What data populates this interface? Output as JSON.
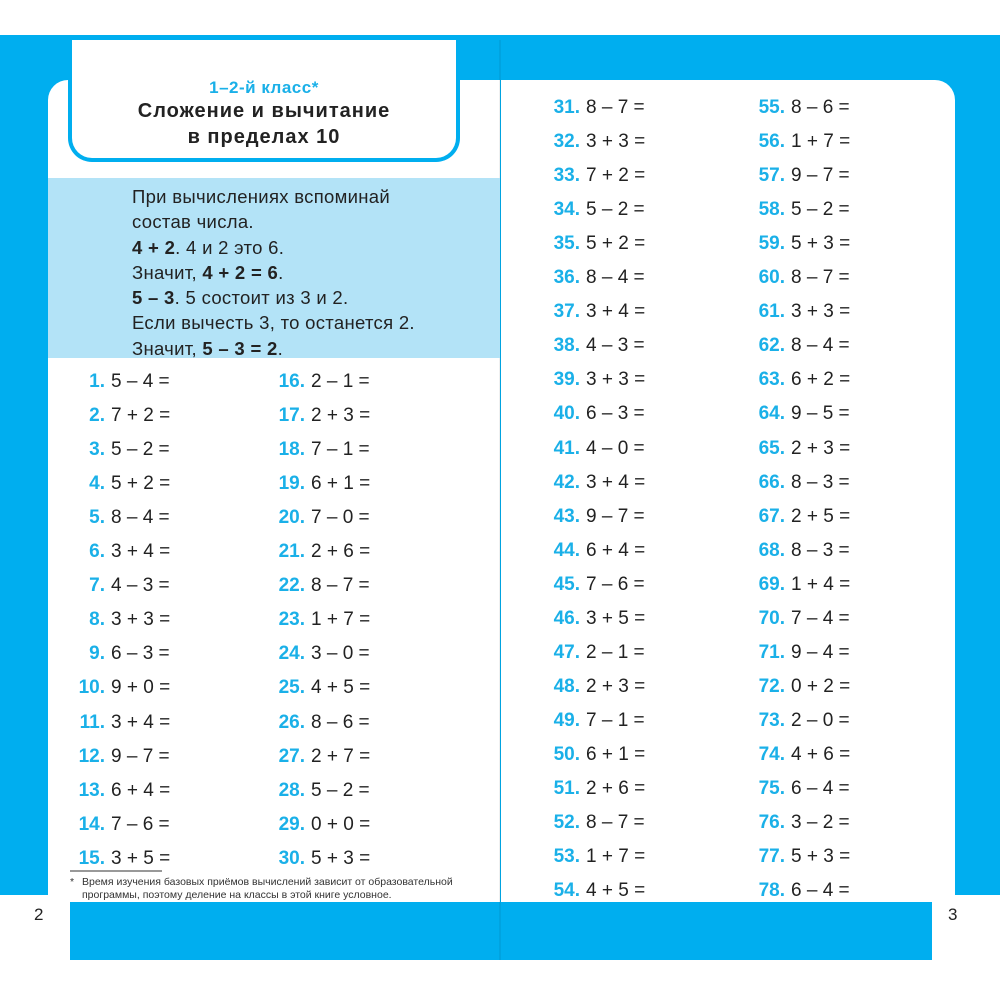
{
  "header": {
    "grade": "1–2-й класс*",
    "title_line1": "Сложение и вычитание",
    "title_line2": "в пределах 10"
  },
  "info": {
    "line1": "При вычислениях вспоминай",
    "line2": "состав числа.",
    "l3_bold": "4 + 2",
    "l3_rest": ". 4 и 2 это 6.",
    "l4_pre": "Значит, ",
    "l4_bold": "4 + 2 = 6",
    "l4_post": ".",
    "l5_bold": "5 – 3",
    "l5_rest": ". 5 состоит из 3 и 2.",
    "line6": "Если вычесть 3, то останется 2.",
    "l7_pre": "Значит, ",
    "l7_bold": "5 – 3 = 2",
    "l7_post": "."
  },
  "exercises": [
    [
      "1.",
      "5 – 4 ="
    ],
    [
      "2.",
      "7 + 2 ="
    ],
    [
      "3.",
      "5 – 2 ="
    ],
    [
      "4.",
      "5 + 2 ="
    ],
    [
      "5.",
      "8 – 4 ="
    ],
    [
      "6.",
      "3 + 4 ="
    ],
    [
      "7.",
      "4 – 3 ="
    ],
    [
      "8.",
      "3 + 3 ="
    ],
    [
      "9.",
      "6 – 3 ="
    ],
    [
      "10.",
      "9 + 0 ="
    ],
    [
      "11.",
      "3 + 4 ="
    ],
    [
      "12.",
      "9 – 7 ="
    ],
    [
      "13.",
      "6 + 4 ="
    ],
    [
      "14.",
      "7 – 6 ="
    ],
    [
      "15.",
      "3 + 5 ="
    ],
    [
      "16.",
      "2 – 1 ="
    ],
    [
      "17.",
      "2 + 3 ="
    ],
    [
      "18.",
      "7 – 1 ="
    ],
    [
      "19.",
      "6 + 1 ="
    ],
    [
      "20.",
      "7 – 0 ="
    ],
    [
      "21.",
      "2 + 6 ="
    ],
    [
      "22.",
      "8 – 7 ="
    ],
    [
      "23.",
      "1 + 7 ="
    ],
    [
      "24.",
      "3 – 0 ="
    ],
    [
      "25.",
      "4 + 5 ="
    ],
    [
      "26.",
      "8 – 6 ="
    ],
    [
      "27.",
      "2 + 7 ="
    ],
    [
      "28.",
      "5 – 2 ="
    ],
    [
      "29.",
      "0 + 0 ="
    ],
    [
      "30.",
      "5 + 3 ="
    ],
    [
      "31.",
      "8 – 7 ="
    ],
    [
      "32.",
      "3 + 3 ="
    ],
    [
      "33.",
      "7 + 2 ="
    ],
    [
      "34.",
      "5 – 2 ="
    ],
    [
      "35.",
      "5 + 2 ="
    ],
    [
      "36.",
      "8 – 4 ="
    ],
    [
      "37.",
      "3 + 4 ="
    ],
    [
      "38.",
      "4 – 3 ="
    ],
    [
      "39.",
      "3 + 3 ="
    ],
    [
      "40.",
      "6 – 3 ="
    ],
    [
      "41.",
      "4 – 0 ="
    ],
    [
      "42.",
      "3 + 4 ="
    ],
    [
      "43.",
      "9 – 7 ="
    ],
    [
      "44.",
      "6 + 4 ="
    ],
    [
      "45.",
      "7 – 6 ="
    ],
    [
      "46.",
      "3 + 5 ="
    ],
    [
      "47.",
      "2 – 1 ="
    ],
    [
      "48.",
      "2 + 3 ="
    ],
    [
      "49.",
      "7 – 1 ="
    ],
    [
      "50.",
      "6 + 1 ="
    ],
    [
      "51.",
      "2 + 6 ="
    ],
    [
      "52.",
      "8 – 7 ="
    ],
    [
      "53.",
      "1 + 7 ="
    ],
    [
      "54.",
      "4 + 5 ="
    ],
    [
      "55.",
      "8 – 6 ="
    ],
    [
      "56.",
      "1 + 7 ="
    ],
    [
      "57.",
      "9 – 7 ="
    ],
    [
      "58.",
      "5 – 2 ="
    ],
    [
      "59.",
      "5 + 3 ="
    ],
    [
      "60.",
      "8 – 7 ="
    ],
    [
      "61.",
      "3 + 3 ="
    ],
    [
      "62.",
      "8 – 4 ="
    ],
    [
      "63.",
      "6 + 2 ="
    ],
    [
      "64.",
      "9 – 5 ="
    ],
    [
      "65.",
      "2 + 3 ="
    ],
    [
      "66.",
      "8 – 3 ="
    ],
    [
      "67.",
      "2 + 5 ="
    ],
    [
      "68.",
      "8 – 3 ="
    ],
    [
      "69.",
      "1 + 4 ="
    ],
    [
      "70.",
      "7 – 4 ="
    ],
    [
      "71.",
      "9 – 4 ="
    ],
    [
      "72.",
      "0 + 2 ="
    ],
    [
      "73.",
      "2 – 0 ="
    ],
    [
      "74.",
      "4 + 6 ="
    ],
    [
      "75.",
      "6 – 4 ="
    ],
    [
      "76.",
      "3 – 2 ="
    ],
    [
      "77.",
      "5 + 3 ="
    ],
    [
      "78.",
      "6 – 4 ="
    ]
  ],
  "footnote": {
    "mark": "*",
    "text": "Время изучения базовых приёмов вычислений зависит от образовательной программы, поэтому деление на классы в этой книге условное."
  },
  "page_numbers": {
    "left": "2",
    "right": "3"
  },
  "colors": {
    "accent": "#00aeef",
    "number": "#1ab0e8",
    "info_bg": "#b3e3f7"
  }
}
